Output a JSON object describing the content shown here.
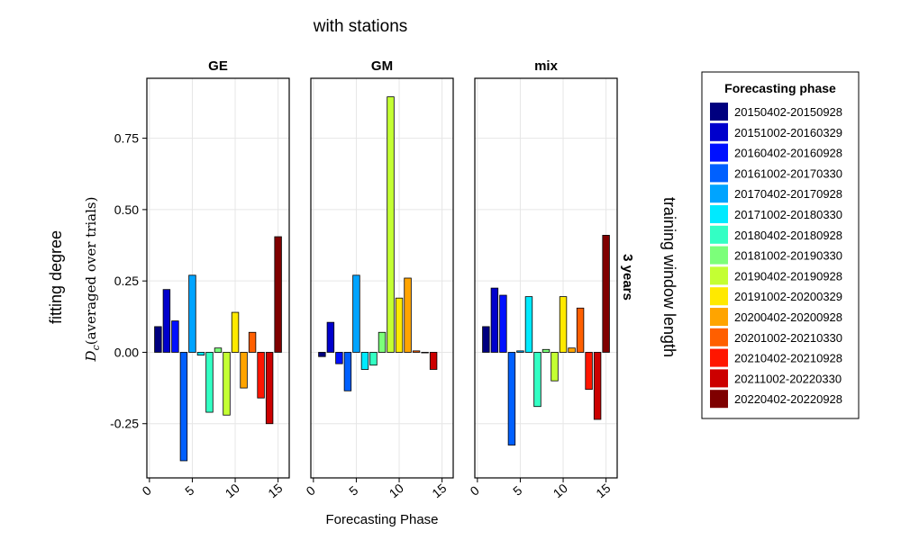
{
  "chart_data": {
    "type": "bar",
    "title": "with stations",
    "xlabel": "Forecasting Phase",
    "ylabel_outer": "fitting degree",
    "ylabel_inner": "D_c(averaged over trials)",
    "ylabel_inner_main": "D",
    "ylabel_inner_sub": "c",
    "ylabel_inner_rest": "(averaged over trials)",
    "row_label": "training window length",
    "row_facet": "3 years",
    "xlim": [
      -0.3,
      16.3
    ],
    "ylim": [
      -0.44,
      0.96
    ],
    "xticks": [
      0,
      5,
      10,
      15
    ],
    "xtick_labels": [
      "0",
      "5",
      "10",
      "15"
    ],
    "yticks": [
      -0.25,
      0.0,
      0.25,
      0.5,
      0.75
    ],
    "ytick_labels": [
      "-0.25",
      "0.00",
      "0.25",
      "0.50",
      "0.75"
    ],
    "grid": true,
    "legend": {
      "title": "Forecasting phase",
      "placement": "right",
      "entries": [
        {
          "label": "20150402-20150928",
          "color": "#00007f"
        },
        {
          "label": "20151002-20160329",
          "color": "#0000cc"
        },
        {
          "label": "20160402-20160928",
          "color": "#0010ff"
        },
        {
          "label": "20161002-20170330",
          "color": "#0060ff"
        },
        {
          "label": "20170402-20170928",
          "color": "#00a4ff"
        },
        {
          "label": "20171002-20180330",
          "color": "#00eaff"
        },
        {
          "label": "20180402-20180928",
          "color": "#33ffc4"
        },
        {
          "label": "20181002-20190330",
          "color": "#7cff7a"
        },
        {
          "label": "20190402-20190928",
          "color": "#c4ff33"
        },
        {
          "label": "20191002-20200329",
          "color": "#ffe900"
        },
        {
          "label": "20200402-20200928",
          "color": "#ffa400"
        },
        {
          "label": "20201002-20210330",
          "color": "#ff5f00"
        },
        {
          "label": "20210402-20210928",
          "color": "#ff1600"
        },
        {
          "label": "20211002-20220330",
          "color": "#cc0000"
        },
        {
          "label": "20220402-20220928",
          "color": "#7f0000"
        }
      ]
    },
    "x": [
      1,
      2,
      3,
      4,
      5,
      6,
      7,
      8,
      9,
      10,
      11,
      12,
      13,
      14,
      15
    ],
    "panels": [
      {
        "name": "GE",
        "values": [
          0.09,
          0.22,
          0.11,
          -0.38,
          0.27,
          -0.01,
          -0.21,
          0.015,
          -0.22,
          0.14,
          -0.125,
          0.07,
          -0.16,
          -0.25,
          0.405
        ]
      },
      {
        "name": "GM",
        "values": [
          -0.015,
          0.105,
          -0.04,
          -0.135,
          0.27,
          -0.06,
          -0.045,
          0.07,
          0.895,
          0.19,
          0.26,
          0.005,
          0.0,
          -0.06,
          null
        ]
      },
      {
        "name": "mix",
        "values": [
          0.09,
          0.225,
          0.2,
          -0.325,
          0.005,
          0.195,
          -0.19,
          0.01,
          -0.1,
          0.195,
          0.015,
          0.155,
          -0.13,
          -0.235,
          0.41
        ]
      }
    ]
  }
}
